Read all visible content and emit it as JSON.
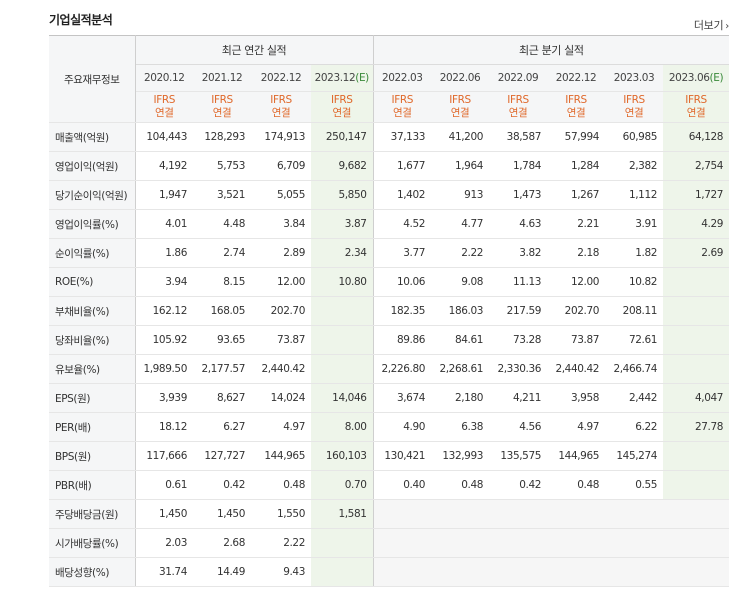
{
  "section_title": "기업실적분석",
  "more_label": "더보기",
  "more_arrow": "›",
  "header": {
    "corner": "주요재무정보",
    "annual_group": "최근 연간 실적",
    "quarter_group": "최근 분기 실적",
    "annual_periods": [
      "2020.12",
      "2021.12",
      "2022.12",
      "2023.12"
    ],
    "annual_estimate_flags": [
      false,
      false,
      false,
      true
    ],
    "quarter_periods": [
      "2022.03",
      "2022.06",
      "2022.09",
      "2022.12",
      "2023.03",
      "2023.06"
    ],
    "quarter_estimate_flags": [
      false,
      false,
      false,
      false,
      false,
      true
    ],
    "estimate_mark": "(E)",
    "standard_line1": "IFRS",
    "standard_line2": "연결"
  },
  "rows": [
    {
      "label": "매출액(억원)",
      "values": [
        "104,443",
        "128,293",
        "174,913",
        "250,147",
        "37,133",
        "41,200",
        "38,587",
        "57,994",
        "60,985",
        "64,128"
      ]
    },
    {
      "label": "영업이익(억원)",
      "values": [
        "4,192",
        "5,753",
        "6,709",
        "9,682",
        "1,677",
        "1,964",
        "1,784",
        "1,284",
        "2,382",
        "2,754"
      ]
    },
    {
      "label": "당기순이익(억원)",
      "values": [
        "1,947",
        "3,521",
        "5,055",
        "5,850",
        "1,402",
        "913",
        "1,473",
        "1,267",
        "1,112",
        "1,727"
      ]
    },
    {
      "label": "영업이익률(%)",
      "values": [
        "4.01",
        "4.48",
        "3.84",
        "3.87",
        "4.52",
        "4.77",
        "4.63",
        "2.21",
        "3.91",
        "4.29"
      ],
      "sep": true
    },
    {
      "label": "순이익률(%)",
      "values": [
        "1.86",
        "2.74",
        "2.89",
        "2.34",
        "3.77",
        "2.22",
        "3.82",
        "2.18",
        "1.82",
        "2.69"
      ]
    },
    {
      "label": "ROE(%)",
      "values": [
        "3.94",
        "8.15",
        "12.00",
        "10.80",
        "10.06",
        "9.08",
        "11.13",
        "12.00",
        "10.82",
        ""
      ]
    },
    {
      "label": "부채비율(%)",
      "values": [
        "162.12",
        "168.05",
        "202.70",
        "",
        "182.35",
        "186.03",
        "217.59",
        "202.70",
        "208.11",
        ""
      ],
      "sep": true
    },
    {
      "label": "당좌비율(%)",
      "values": [
        "105.92",
        "93.65",
        "73.87",
        "",
        "89.86",
        "84.61",
        "73.28",
        "73.87",
        "72.61",
        ""
      ]
    },
    {
      "label": "유보율(%)",
      "values": [
        "1,989.50",
        "2,177.57",
        "2,440.42",
        "",
        "2,226.80",
        "2,268.61",
        "2,330.36",
        "2,440.42",
        "2,466.74",
        ""
      ]
    },
    {
      "label": "EPS(원)",
      "values": [
        "3,939",
        "8,627",
        "14,024",
        "14,046",
        "3,674",
        "2,180",
        "4,211",
        "3,958",
        "2,442",
        "4,047"
      ],
      "sep": true
    },
    {
      "label": "PER(배)",
      "values": [
        "18.12",
        "6.27",
        "4.97",
        "8.00",
        "4.90",
        "6.38",
        "4.56",
        "4.97",
        "6.22",
        "27.78"
      ]
    },
    {
      "label": "BPS(원)",
      "values": [
        "117,666",
        "127,727",
        "144,965",
        "160,103",
        "130,421",
        "132,993",
        "135,575",
        "144,965",
        "145,274",
        ""
      ]
    },
    {
      "label": "PBR(배)",
      "values": [
        "0.61",
        "0.42",
        "0.48",
        "0.70",
        "0.40",
        "0.48",
        "0.42",
        "0.48",
        "0.55",
        ""
      ]
    },
    {
      "label": "주당배당금(원)",
      "values": [
        "1,450",
        "1,450",
        "1,550",
        "1,581",
        "",
        "",
        "",
        "",
        "",
        ""
      ],
      "sep": true,
      "quarter_na": true
    },
    {
      "label": "시가배당률(%)",
      "values": [
        "2.03",
        "2.68",
        "2.22",
        "",
        "",
        "",
        "",
        "",
        "",
        ""
      ],
      "quarter_na": true
    },
    {
      "label": "배당성향(%)",
      "values": [
        "31.74",
        "14.49",
        "9.43",
        "",
        "",
        "",
        "",
        "",
        "",
        ""
      ],
      "quarter_na": true
    }
  ]
}
